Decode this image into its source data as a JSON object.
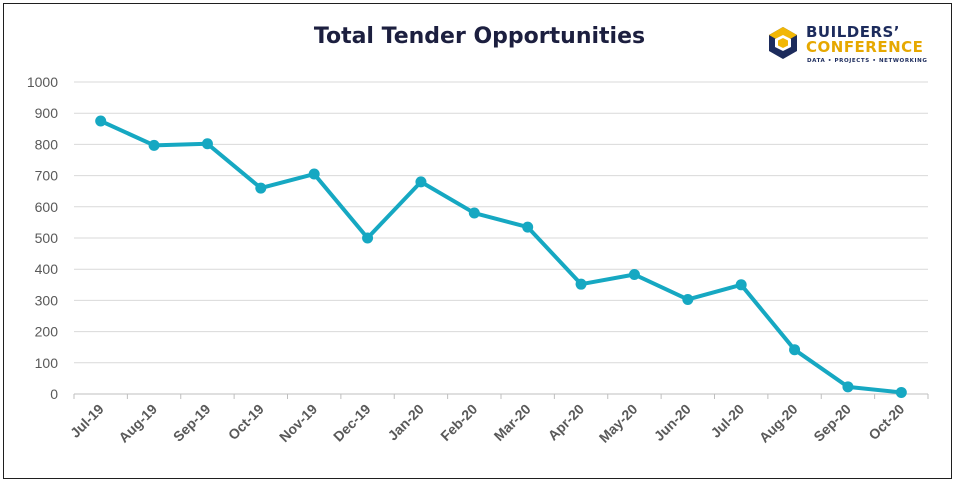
{
  "colors": {
    "line": "#16a8c2",
    "grid": "#d9d9d9",
    "title": "#1c1f3f",
    "logo_navy": "#1c2b5c",
    "logo_gold": "#e6a800"
  },
  "logo": {
    "line1": "BUILDERS’",
    "line2": "CONFERENCE",
    "tagline": "DATA • PROJECTS • NETWORKING",
    "icon": "hexagon-logo-icon"
  },
  "chart_data": {
    "type": "line",
    "title": "Total Tender Opportunities",
    "xlabel": "",
    "ylabel": "",
    "categories": [
      "Jul-19",
      "Aug-19",
      "Sep-19",
      "Oct-19",
      "Nov-19",
      "Dec-19",
      "Jan-20",
      "Feb-20",
      "Mar-20",
      "Apr-20",
      "May-20",
      "Jun-20",
      "Jul-20",
      "Aug-20",
      "Sep-20",
      "Oct-20"
    ],
    "series": [
      {
        "values": [
          875,
          797,
          802,
          660,
          705,
          500,
          680,
          580,
          535,
          352,
          383,
          303,
          350,
          142,
          23,
          5
        ]
      }
    ],
    "ylim": [
      0,
      1000
    ],
    "yticks": [
      "0",
      "100",
      "200",
      "300",
      "400",
      "500",
      "600",
      "700",
      "800",
      "900",
      "1000"
    ],
    "grid": true,
    "legend": "none"
  }
}
